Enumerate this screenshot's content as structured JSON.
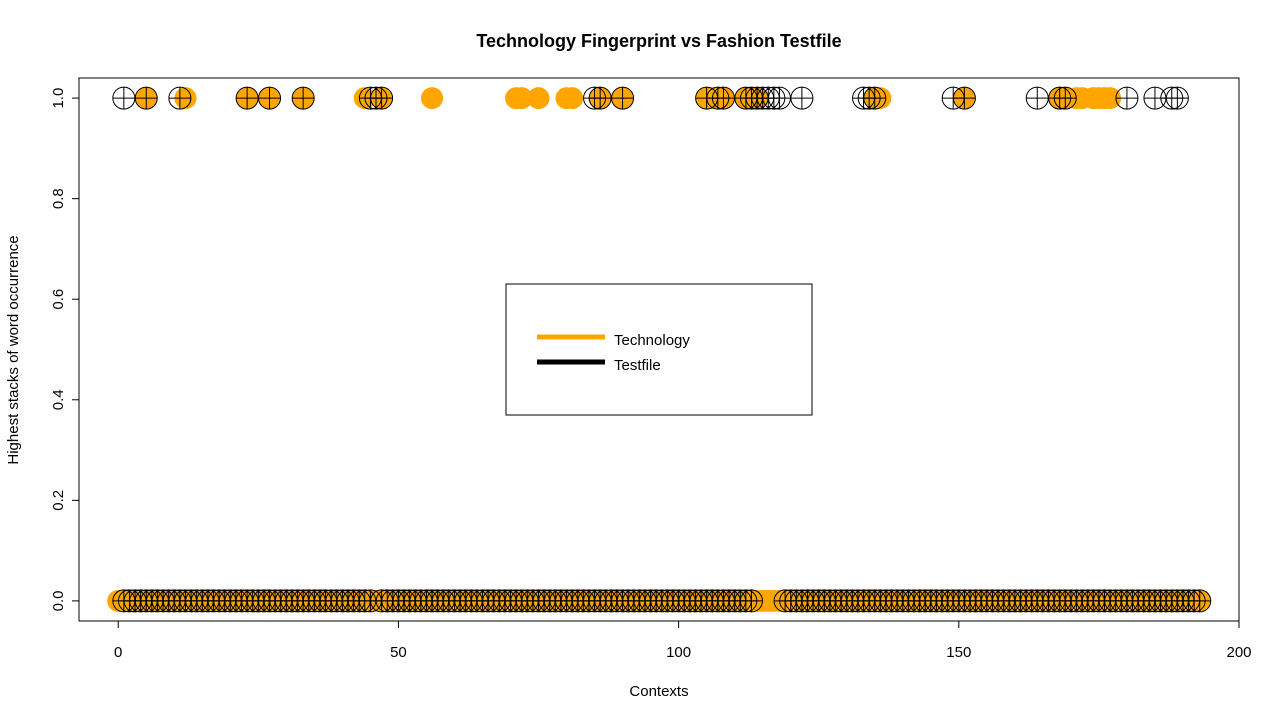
{
  "chart_data": {
    "type": "scatter",
    "title": "Technology Fingerprint vs Fashion Testfile",
    "xlabel": "Contexts",
    "ylabel": "Highest stacks of word occurrence",
    "xlim": [
      -7,
      200
    ],
    "ylim": [
      -0.04,
      1.04
    ],
    "x_ticks": [
      "0",
      "50",
      "100",
      "150",
      "200"
    ],
    "x_tick_values": [
      0,
      50,
      100,
      150,
      200
    ],
    "y_ticks": [
      "0.0",
      "0.2",
      "0.4",
      "0.6",
      "0.8",
      "1.0"
    ],
    "y_tick_values": [
      0,
      0.2,
      0.4,
      0.6,
      0.8,
      1.0
    ],
    "grid": false,
    "legend_position": "center",
    "legend": [
      {
        "label": "Technology",
        "color": "#FFA500"
      },
      {
        "label": "Testfile",
        "color": "#000000"
      }
    ],
    "series": [
      {
        "name": "Technology",
        "color": "#FFA500",
        "marker": "filled-circle",
        "x_at_1": [
          5,
          12,
          23,
          27,
          33,
          44,
          47,
          56,
          71,
          72,
          75,
          80,
          81,
          86,
          90,
          105,
          106,
          108,
          112,
          114,
          135,
          136,
          151,
          168,
          169,
          171,
          172,
          174,
          175,
          176,
          177
        ],
        "x_at_0_ranges": [
          [
            0,
            193
          ]
        ]
      },
      {
        "name": "Testfile",
        "color": "#000000",
        "marker": "circle-plus",
        "x_at_1": [
          1,
          5,
          11,
          23,
          27,
          33,
          45,
          46,
          47,
          85,
          86,
          90,
          105,
          107,
          108,
          112,
          113,
          114,
          115,
          116,
          117,
          118,
          122,
          133,
          134,
          135,
          149,
          151,
          164,
          168,
          169,
          180,
          185,
          188,
          189
        ],
        "x_at_0_ranges": [
          [
            1,
            45
          ],
          [
            47,
            113
          ],
          [
            119,
            193
          ]
        ]
      }
    ]
  }
}
